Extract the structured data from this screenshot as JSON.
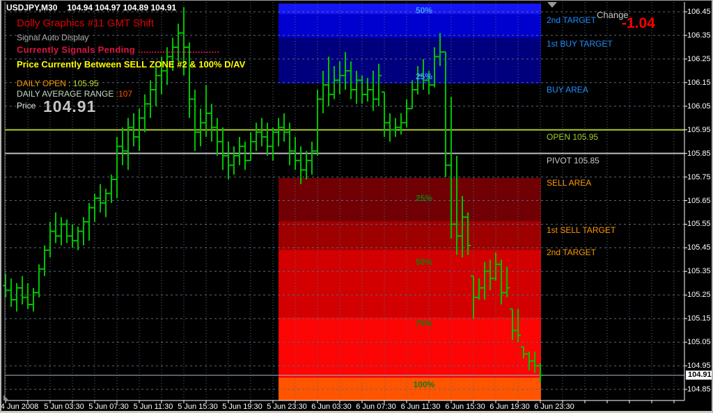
{
  "window": {
    "title_line": {
      "symbol_period": "USDJPY,M30",
      "ohlc": "104.94 104.97 104.89 104.91"
    }
  },
  "info_panel": {
    "indicator_title": "Dolly Graphics #11 GMT Shift",
    "signal_mode": "Signal Auto Display",
    "signal_status": "Currently Signals Pending ..............................",
    "price_position": "Price Currently Between SELL ZONE #2 & 100% D/AV",
    "daily_open_label": "DAILY OPEN",
    "daily_open_value": ": 105.95",
    "daily_avg_range_label": "DAILY AVERAGE RANGE",
    "daily_avg_range_value": ":107",
    "price_label": "Price",
    "price_value": "104.91"
  },
  "change": {
    "label": "Change",
    "value": "-1.04"
  },
  "right_labels": [
    {
      "text": "2nd TARGET",
      "price": 106.415,
      "color": "#1e90ff"
    },
    {
      "text": "1st BUY TARGET",
      "price": 106.315,
      "color": "#1e90ff"
    },
    {
      "text": "BUY AREA",
      "price": 106.12,
      "color": "#1e90ff"
    },
    {
      "text": "OPEN 105.95",
      "price": 105.92,
      "color": "#9fce30"
    },
    {
      "text": "PIVOT 105.85",
      "price": 105.82,
      "color": "#c8c8c8"
    },
    {
      "text": "SELL AREA",
      "price": 105.725,
      "color": "#ff9900"
    },
    {
      "text": "1st SELL TARGET",
      "price": 105.525,
      "color": "#ff9900"
    },
    {
      "text": "2nd TARGET",
      "price": 105.43,
      "color": "#ff9900"
    }
  ],
  "levels": {
    "open": {
      "price": 105.95,
      "color": "#aacc22"
    },
    "pivot": {
      "price": 105.85,
      "color": "#bdbdbd"
    },
    "current": {
      "price": 104.91,
      "color": "#a8b8c8",
      "tag": "104.91"
    }
  },
  "axis": {
    "price_ticks": [
      "106.45",
      "106.35",
      "106.25",
      "106.15",
      "106.05",
      "105.95",
      "105.85",
      "105.75",
      "105.65",
      "105.55",
      "105.45",
      "105.35",
      "105.25",
      "105.15",
      "105.05",
      "104.95",
      "104.85"
    ],
    "time_ticks": [
      "4 Jun 2008",
      "5 Jun 03:30",
      "5 Jun 07:30",
      "5 Jun 11:30",
      "5 Jun 15:30",
      "5 Jun 19:30",
      "5 Jun 23:30",
      "6 Jun 03:30",
      "6 Jun 07:30",
      "6 Jun 11:30",
      "6 Jun 15:30",
      "6 Jun 19:30",
      "6 Jun 23:30"
    ]
  },
  "chart_data": {
    "type": "bar",
    "subtype": "ohlc-bars",
    "symbol": "USDJPY",
    "timeframe": "M30",
    "title": "USDJPY,M30 104.94 104.97 104.89 104.91",
    "ylim": [
      104.8,
      106.49
    ],
    "x_tick_labels": [
      "4 Jun 2008",
      "5 Jun 03:30",
      "5 Jun 07:30",
      "5 Jun 11:30",
      "5 Jun 15:30",
      "5 Jun 19:30",
      "5 Jun 23:30",
      "6 Jun 03:30",
      "6 Jun 07:30",
      "6 Jun 11:30",
      "6 Jun 15:30",
      "6 Jun 19:30",
      "6 Jun 23:30"
    ],
    "grid": true,
    "bar_color": "#00c300",
    "bars_hlc": [
      [
        105.34,
        105.24,
        105.27
      ],
      [
        105.32,
        105.2,
        105.23
      ],
      [
        105.3,
        105.18,
        105.28
      ],
      [
        105.33,
        105.21,
        105.24
      ],
      [
        105.3,
        105.19,
        105.21
      ],
      [
        105.28,
        105.18,
        105.26
      ],
      [
        105.38,
        105.24,
        105.36
      ],
      [
        105.46,
        105.33,
        105.44
      ],
      [
        105.56,
        105.41,
        105.52
      ],
      [
        105.6,
        105.47,
        105.5
      ],
      [
        105.58,
        105.46,
        105.55
      ],
      [
        105.57,
        105.47,
        105.5
      ],
      [
        105.55,
        105.45,
        105.48
      ],
      [
        105.54,
        105.44,
        105.52
      ],
      [
        105.58,
        105.46,
        105.56
      ],
      [
        105.64,
        105.48,
        105.62
      ],
      [
        105.68,
        105.56,
        105.66
      ],
      [
        105.72,
        105.6,
        105.64
      ],
      [
        105.7,
        105.58,
        105.68
      ],
      [
        105.76,
        105.64,
        105.74
      ],
      [
        105.92,
        105.66,
        105.88
      ],
      [
        105.96,
        105.8,
        105.86
      ],
      [
        106.0,
        105.78,
        105.96
      ],
      [
        106.02,
        105.88,
        105.92
      ],
      [
        106.04,
        105.86,
        106.0
      ],
      [
        106.1,
        105.94,
        106.06
      ],
      [
        106.16,
        106.0,
        106.12
      ],
      [
        106.22,
        106.05,
        106.18
      ],
      [
        106.26,
        106.1,
        106.2
      ],
      [
        106.3,
        106.14,
        106.26
      ],
      [
        106.34,
        106.2,
        106.3
      ],
      [
        106.4,
        106.24,
        106.36
      ],
      [
        106.47,
        106.18,
        106.3
      ],
      [
        106.32,
        106.0,
        106.08
      ],
      [
        106.12,
        105.86,
        105.94
      ],
      [
        106.04,
        105.88,
        105.98
      ],
      [
        106.14,
        105.92,
        106.02
      ],
      [
        106.06,
        105.9,
        105.96
      ],
      [
        106.0,
        105.84,
        105.9
      ],
      [
        105.96,
        105.78,
        105.84
      ],
      [
        105.9,
        105.74,
        105.8
      ],
      [
        105.88,
        105.76,
        105.84
      ],
      [
        105.92,
        105.8,
        105.88
      ],
      [
        105.9,
        105.78,
        105.82
      ],
      [
        105.94,
        105.82,
        105.9
      ],
      [
        105.98,
        105.86,
        105.94
      ],
      [
        106.0,
        105.88,
        105.92
      ],
      [
        105.98,
        105.84,
        105.88
      ],
      [
        105.96,
        105.82,
        105.94
      ],
      [
        106.0,
        105.88,
        105.96
      ],
      [
        106.02,
        105.9,
        105.94
      ],
      [
        105.98,
        105.8,
        105.86
      ],
      [
        105.92,
        105.78,
        105.82
      ],
      [
        105.88,
        105.72,
        105.78
      ],
      [
        105.86,
        105.74,
        105.82
      ],
      [
        105.9,
        105.76,
        105.86
      ],
      [
        106.12,
        105.84,
        106.08
      ],
      [
        106.2,
        106.02,
        106.14
      ],
      [
        106.26,
        106.05,
        106.1
      ],
      [
        106.22,
        106.08,
        106.16
      ],
      [
        106.24,
        106.1,
        106.18
      ],
      [
        106.28,
        106.12,
        106.2
      ],
      [
        106.24,
        106.08,
        106.12
      ],
      [
        106.2,
        106.06,
        106.16
      ],
      [
        106.18,
        106.06,
        106.1
      ],
      [
        106.17,
        106.07,
        106.12
      ],
      [
        106.2,
        106.03,
        106.08
      ],
      [
        106.23,
        106.05,
        106.18
      ],
      [
        106.11,
        105.92,
        105.98
      ],
      [
        106.02,
        105.9,
        105.95
      ],
      [
        106.0,
        105.92,
        105.96
      ],
      [
        106.02,
        105.93,
        105.98
      ],
      [
        106.08,
        105.96,
        106.04
      ],
      [
        106.16,
        106.04,
        106.12
      ],
      [
        106.22,
        106.1,
        106.18
      ],
      [
        106.25,
        106.12,
        106.16
      ],
      [
        106.2,
        106.1,
        106.14
      ],
      [
        106.3,
        106.13,
        106.26
      ],
      [
        106.36,
        106.22,
        106.28
      ],
      [
        106.28,
        105.75,
        105.8
      ],
      [
        106.09,
        105.49,
        105.55
      ],
      [
        105.84,
        105.42,
        105.5
      ],
      [
        105.67,
        105.41,
        105.58
      ],
      [
        105.6,
        105.42,
        105.46
      ],
      [
        105.33,
        105.15,
        105.24
      ],
      [
        105.32,
        105.23,
        105.28
      ],
      [
        105.39,
        105.23,
        105.35
      ],
      [
        105.4,
        105.27,
        105.32
      ],
      [
        105.43,
        105.31,
        105.38
      ],
      [
        105.4,
        105.21,
        105.26
      ],
      [
        105.37,
        105.24,
        105.28
      ],
      [
        105.19,
        105.06,
        105.1
      ],
      [
        105.19,
        105.05,
        105.08
      ],
      [
        105.03,
        104.98,
        105.0
      ],
      [
        105.01,
        104.93,
        104.97
      ],
      [
        105.01,
        104.92,
        104.95
      ],
      [
        104.96,
        104.88,
        104.91
      ]
    ],
    "zones": {
      "start_bar": 49,
      "end_bar": 96,
      "buy_bands": [
        {
          "p_top": 106.485,
          "p_bot": 106.44,
          "color": "#1616f5"
        },
        {
          "p_top": 106.44,
          "p_bot": 106.34,
          "color": "#0000cf"
        },
        {
          "p_top": 106.34,
          "p_bot": 106.145,
          "color": "#00007e"
        }
      ],
      "sell_bands": [
        {
          "p_top": 105.746,
          "p_bot": 105.563,
          "color": "#700003"
        },
        {
          "p_top": 105.563,
          "p_bot": 105.442,
          "color": "#9e0000"
        },
        {
          "p_top": 105.442,
          "p_bot": 105.156,
          "color": "#d20000"
        },
        {
          "p_top": 105.156,
          "p_bot": 104.9,
          "color": "#fb0505"
        },
        {
          "p_top": 104.9,
          "p_bot": 104.802,
          "color": "#ff5400"
        }
      ],
      "pct_labels": [
        {
          "text": "50%",
          "price": 106.455,
          "color": "#3e9bff"
        },
        {
          "text": "25%",
          "price": 106.175,
          "color": "#3e9bff"
        },
        {
          "text": "25%",
          "price": 105.66,
          "color": "#157a15"
        },
        {
          "text": "50%",
          "price": 105.39,
          "color": "#157a15"
        },
        {
          "text": "75%",
          "price": 105.13,
          "color": "#157a15"
        },
        {
          "text": "100%",
          "price": 104.87,
          "color": "#157a15"
        }
      ]
    }
  },
  "colors": {
    "background": "#000000",
    "grid": "#566b80",
    "bar": "#00c300",
    "axis_text": "#ffffff",
    "frame": "#c0c0c0"
  }
}
